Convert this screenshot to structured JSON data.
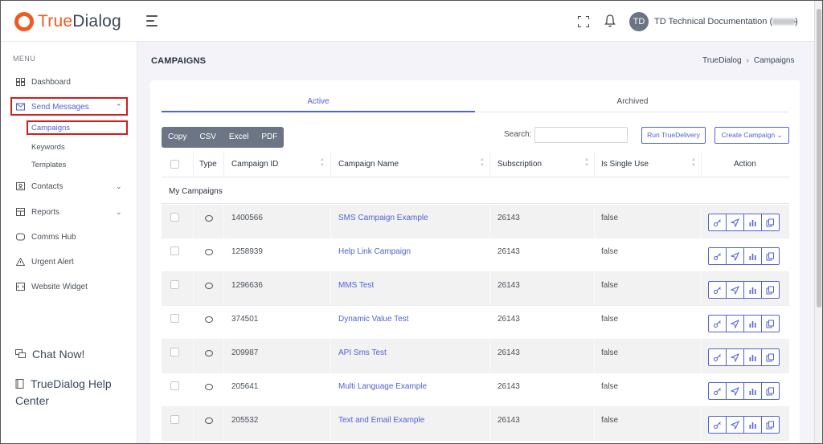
{
  "brand": {
    "name_part1": "True",
    "name_part2": "Dialog",
    "accent_color": "#f05a22"
  },
  "topbar": {
    "user_initials": "TD",
    "user_name": "TD Technical Documentation (",
    "user_name_suffix": ")"
  },
  "sidebar": {
    "menu_title": "MENU",
    "items": [
      {
        "label": "Dashboard",
        "icon": "dashboard-icon"
      },
      {
        "label": "Send Messages",
        "icon": "envelope-icon",
        "expanded": true
      },
      {
        "label": "Contacts",
        "icon": "contacts-icon"
      },
      {
        "label": "Reports",
        "icon": "reports-icon"
      },
      {
        "label": "Comms Hub",
        "icon": "comms-hub-icon"
      },
      {
        "label": "Urgent Alert",
        "icon": "alert-triangle-icon"
      },
      {
        "label": "Website Widget",
        "icon": "widget-icon"
      }
    ],
    "sub_items": [
      "Campaigns",
      "Keywords",
      "Templates"
    ],
    "chat_now": "Chat Now!",
    "help_center": "TrueDialog Help Center"
  },
  "page": {
    "title": "CAMPAIGNS",
    "breadcrumb": [
      "TrueDialog",
      "Campaigns"
    ]
  },
  "tabs": [
    "Active",
    "Archived"
  ],
  "toolbar": {
    "export_buttons": [
      "Copy",
      "CSV",
      "Excel",
      "PDF"
    ],
    "search_label": "Search:",
    "search_value": "",
    "run_button": "Run TrueDelivery",
    "create_button": "Create Campaign"
  },
  "table": {
    "columns": [
      "Type",
      "Campaign ID",
      "Campaign Name",
      "Subscription",
      "Is Single Use",
      "Action"
    ],
    "group_label": "My Campaigns",
    "rows": [
      {
        "id": "1400566",
        "name": "SMS Campaign Example",
        "subscription": "26143",
        "single_use": "false"
      },
      {
        "id": "1258939",
        "name": "Help Link Campaign",
        "subscription": "26143",
        "single_use": "false"
      },
      {
        "id": "1296636",
        "name": "MMS Test",
        "subscription": "26143",
        "single_use": "false"
      },
      {
        "id": "374501",
        "name": "Dynamic Value Test",
        "subscription": "26143",
        "single_use": "false"
      },
      {
        "id": "209987",
        "name": "API Sms Test",
        "subscription": "26143",
        "single_use": "false"
      },
      {
        "id": "205641",
        "name": "Multi Language Example",
        "subscription": "26143",
        "single_use": "false"
      },
      {
        "id": "205532",
        "name": "Text and Email Example",
        "subscription": "26143",
        "single_use": "false"
      }
    ],
    "row_actions": [
      "key-icon",
      "send-icon",
      "stats-icon",
      "copy-icon"
    ]
  },
  "colors": {
    "primary": "#4f63d2",
    "highlight_box": "#d91a1a"
  }
}
